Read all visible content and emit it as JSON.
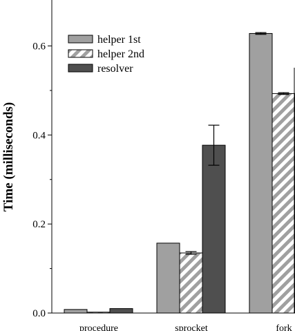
{
  "chart_data": {
    "type": "bar",
    "title": "",
    "xlabel": "",
    "ylabel": "Time (milliseconds)",
    "ylim": [
      0,
      0.7
    ],
    "yticks": [
      0.0,
      0.2,
      0.4,
      0.6
    ],
    "ytick_labels": [
      "0.0",
      "0.2",
      "0.4",
      "0.6"
    ],
    "categories": [
      "procedure",
      "sprocket",
      "fork"
    ],
    "legend_position": "top-left",
    "grid": false,
    "series": [
      {
        "name": "helper 1st",
        "fill": "#a0a0a0",
        "pattern": "solid",
        "values": [
          0.008,
          0.157,
          0.628
        ],
        "errors": [
          0.0,
          0.0,
          0.002
        ]
      },
      {
        "name": "helper 2nd",
        "fill": "#ffffff",
        "pattern": "diagonal-stripes",
        "stripe_color": "#a0a0a0",
        "values": [
          0.002,
          0.135,
          0.493
        ],
        "errors": [
          0.0,
          0.003,
          0.002
        ]
      },
      {
        "name": "resolver",
        "fill": "#4f4f4f",
        "pattern": "solid",
        "values": [
          0.01,
          0.377,
          null
        ],
        "errors": [
          0.0,
          0.045,
          null
        ]
      }
    ]
  }
}
